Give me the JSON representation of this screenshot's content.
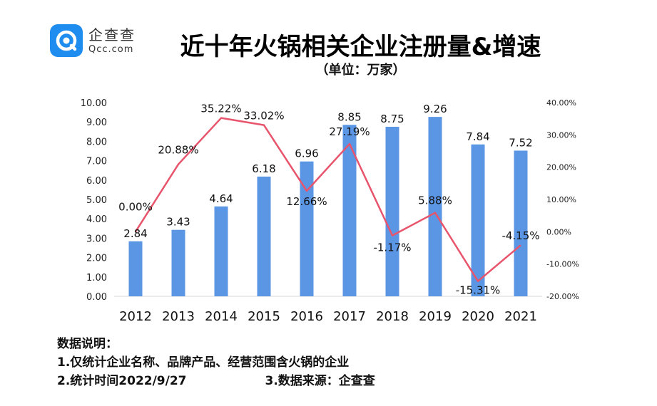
{
  "brand": {
    "name_cn": "企查查",
    "name_en": "Qcc.com",
    "color": "#1f8cf0"
  },
  "header": {
    "title": "近十年火锅相关企业注册量&增速",
    "subtitle": "（单位：万家）"
  },
  "chart_data": {
    "type": "bar+line",
    "categories": [
      "2012",
      "2013",
      "2014",
      "2015",
      "2016",
      "2017",
      "2018",
      "2019",
      "2020",
      "2021"
    ],
    "series": [
      {
        "type": "bar",
        "axis": "left",
        "color": "#5b96e5",
        "values": [
          2.84,
          3.43,
          4.64,
          6.18,
          6.96,
          8.85,
          8.75,
          9.26,
          7.84,
          7.52
        ],
        "labels": [
          "2.84",
          "3.43",
          "4.64",
          "6.18",
          "6.96",
          "8.85",
          "8.75",
          "9.26",
          "7.84",
          "7.52"
        ]
      },
      {
        "type": "line",
        "axis": "right",
        "color": "#e8546c",
        "values": [
          0.0,
          20.88,
          35.22,
          33.02,
          12.66,
          27.19,
          -1.17,
          5.88,
          -15.31,
          -4.15
        ],
        "labels": [
          "0.00%",
          "20.88%",
          "35.22%",
          "33.02%",
          "12.66%",
          "27.19%",
          "-1.17%",
          "5.88%",
          "-15.31%",
          "-4.15%"
        ]
      }
    ],
    "left_axis": {
      "min": 0,
      "max": 10,
      "step": 1,
      "ticks": [
        "0.00",
        "1.00",
        "2.00",
        "3.00",
        "4.00",
        "5.00",
        "6.00",
        "7.00",
        "8.00",
        "9.00",
        "10.00"
      ]
    },
    "right_axis": {
      "min": -20,
      "max": 40,
      "step": 10,
      "ticks": [
        "-20.00%",
        "-10.00%",
        "0.00%",
        "10.00%",
        "20.00%",
        "30.00%",
        "40.00%"
      ]
    },
    "grid": false
  },
  "notes": {
    "heading": "数据说明：",
    "line1": "1.仅统计企业名称、品牌产品、经营范围含火锅的企业",
    "line2a": "2.统计时间2022/9/27",
    "line2b": "3.数据来源：企查查"
  }
}
